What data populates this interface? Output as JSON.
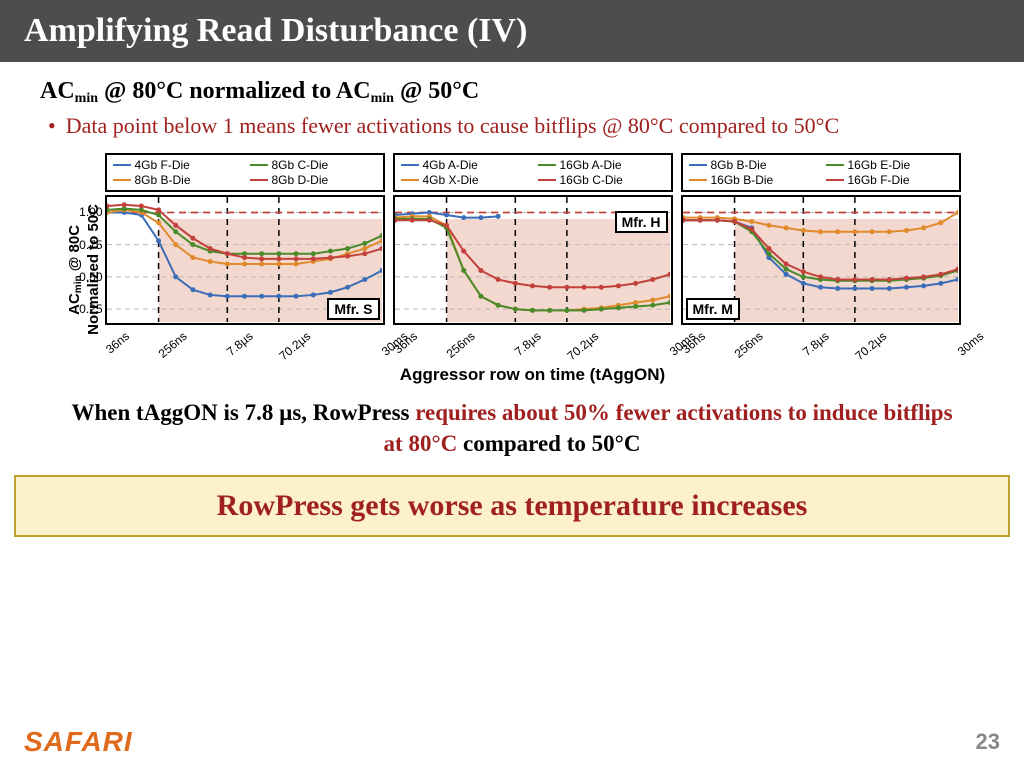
{
  "title": "Amplifying Read Disturbance (IV)",
  "subtitle_parts": [
    "AC",
    "min",
    " @ 80°C  normalized to AC",
    "min",
    " @ 50°C"
  ],
  "bullet_text": "Data point below 1 means fewer activations to cause bitflips @ 80°C compared to 50°C",
  "ylabel_line1": "AC",
  "ylabel_sub": "min",
  "ylabel_rest1": " @ 80C",
  "ylabel_line2": "Normalized to 50C",
  "xlabel": "Aggressor row on time (tAggON)",
  "finding_pre": "When tAggON is 7.8 µs, RowPress ",
  "finding_emph": "requires about 50% fewer activations to induce bitflips at 80°C",
  "finding_post": " compared to 50°C",
  "callout": "RowPress gets worse as temperature increases",
  "logo": "SAFARI",
  "page": "23",
  "colors": {
    "blue": "#3b6db8",
    "orange": "#e08a2c",
    "green": "#4a8a2a",
    "red": "#c4403a",
    "shade": "#e8b8a8",
    "shade_opacity": 0.55,
    "grid": "#b8b8b8",
    "refline": "#c4403a"
  },
  "chart": {
    "ylim": [
      0.15,
      1.12
    ],
    "yticks": [
      0.25,
      0.5,
      0.75,
      1.0
    ],
    "ytick_labels": [
      "0.25",
      "0.50",
      "0.75",
      "1.00"
    ],
    "refline_y": 1.0,
    "n_x": 17,
    "xtick_indices": [
      0,
      3,
      7,
      10,
      16
    ],
    "xtick_labels": [
      "36ns",
      "256ns",
      "7.8µs",
      "70.2µs",
      "30ms"
    ],
    "vlines_at": [
      3,
      7,
      10
    ],
    "shade_from_x": 3,
    "shade_y": [
      0.15,
      0.95
    ]
  },
  "panels": [
    {
      "mfr": "Mfr. S",
      "mfr_pos": "br",
      "legend": [
        {
          "label": "4Gb F-Die",
          "color": "blue"
        },
        {
          "label": "8Gb C-Die",
          "color": "green"
        },
        {
          "label": "8Gb B-Die",
          "color": "orange"
        },
        {
          "label": "8Gb D-Die",
          "color": "red"
        }
      ],
      "series": [
        {
          "color": "blue",
          "y": [
            1.0,
            1.0,
            0.98,
            0.78,
            0.5,
            0.4,
            0.36,
            0.35,
            0.35,
            0.35,
            0.35,
            0.35,
            0.36,
            0.38,
            0.42,
            0.48,
            0.55
          ]
        },
        {
          "color": "orange",
          "y": [
            1.0,
            1.02,
            1.0,
            0.92,
            0.75,
            0.65,
            0.62,
            0.6,
            0.6,
            0.6,
            0.6,
            0.6,
            0.62,
            0.64,
            0.68,
            0.72,
            0.78
          ]
        },
        {
          "color": "green",
          "y": [
            1.02,
            1.03,
            1.02,
            0.98,
            0.85,
            0.75,
            0.7,
            0.68,
            0.68,
            0.68,
            0.68,
            0.68,
            0.68,
            0.7,
            0.72,
            0.76,
            0.82
          ]
        },
        {
          "color": "red",
          "y": [
            1.05,
            1.06,
            1.05,
            1.02,
            0.9,
            0.8,
            0.72,
            0.68,
            0.65,
            0.64,
            0.64,
            0.64,
            0.64,
            0.65,
            0.66,
            0.68,
            0.72
          ]
        }
      ]
    },
    {
      "mfr": "Mfr. H",
      "mfr_pos": "tr",
      "legend": [
        {
          "label": "4Gb A-Die",
          "color": "blue"
        },
        {
          "label": "16Gb A-Die",
          "color": "green"
        },
        {
          "label": "4Gb X-Die",
          "color": "orange"
        },
        {
          "label": "16Gb C-Die",
          "color": "red"
        }
      ],
      "series": [
        {
          "color": "blue",
          "y": [
            0.98,
            0.99,
            1.0,
            0.98,
            0.96,
            0.96,
            0.97,
            null,
            null,
            null,
            null,
            null,
            null,
            null,
            null,
            null,
            null
          ]
        },
        {
          "color": "orange",
          "y": [
            0.96,
            0.97,
            0.97,
            0.9,
            0.55,
            0.35,
            0.28,
            0.25,
            0.24,
            0.24,
            0.24,
            0.25,
            0.26,
            0.28,
            0.3,
            0.32,
            0.35
          ]
        },
        {
          "color": "green",
          "y": [
            0.95,
            0.95,
            0.95,
            0.88,
            0.55,
            0.35,
            0.28,
            0.25,
            0.24,
            0.24,
            0.24,
            0.24,
            0.25,
            0.26,
            0.27,
            0.28,
            0.3
          ]
        },
        {
          "color": "red",
          "y": [
            0.94,
            0.94,
            0.94,
            0.9,
            0.7,
            0.55,
            0.48,
            0.45,
            0.43,
            0.42,
            0.42,
            0.42,
            0.42,
            0.43,
            0.45,
            0.48,
            0.52
          ]
        }
      ]
    },
    {
      "mfr": "Mfr. M",
      "mfr_pos": "bl",
      "legend": [
        {
          "label": "8Gb B-Die",
          "color": "blue"
        },
        {
          "label": "16Gb E-Die",
          "color": "green"
        },
        {
          "label": "16Gb B-Die",
          "color": "orange"
        },
        {
          "label": "16Gb F-Die",
          "color": "red"
        }
      ],
      "series": [
        {
          "color": "blue",
          "y": [
            0.94,
            0.94,
            0.94,
            0.93,
            0.88,
            0.65,
            0.52,
            0.45,
            0.42,
            0.41,
            0.41,
            0.41,
            0.41,
            0.42,
            0.43,
            0.45,
            0.48
          ]
        },
        {
          "color": "orange",
          "y": [
            0.96,
            0.96,
            0.96,
            0.95,
            0.93,
            0.9,
            0.88,
            0.86,
            0.85,
            0.85,
            0.85,
            0.85,
            0.85,
            0.86,
            0.88,
            0.92,
            1.0
          ]
        },
        {
          "color": "green",
          "y": [
            0.94,
            0.94,
            0.94,
            0.93,
            0.85,
            0.68,
            0.56,
            0.5,
            0.48,
            0.47,
            0.47,
            0.47,
            0.47,
            0.48,
            0.49,
            0.51,
            0.55
          ]
        },
        {
          "color": "red",
          "y": [
            0.94,
            0.94,
            0.94,
            0.93,
            0.87,
            0.72,
            0.6,
            0.54,
            0.5,
            0.48,
            0.48,
            0.48,
            0.48,
            0.49,
            0.5,
            0.52,
            0.56
          ]
        }
      ]
    }
  ]
}
